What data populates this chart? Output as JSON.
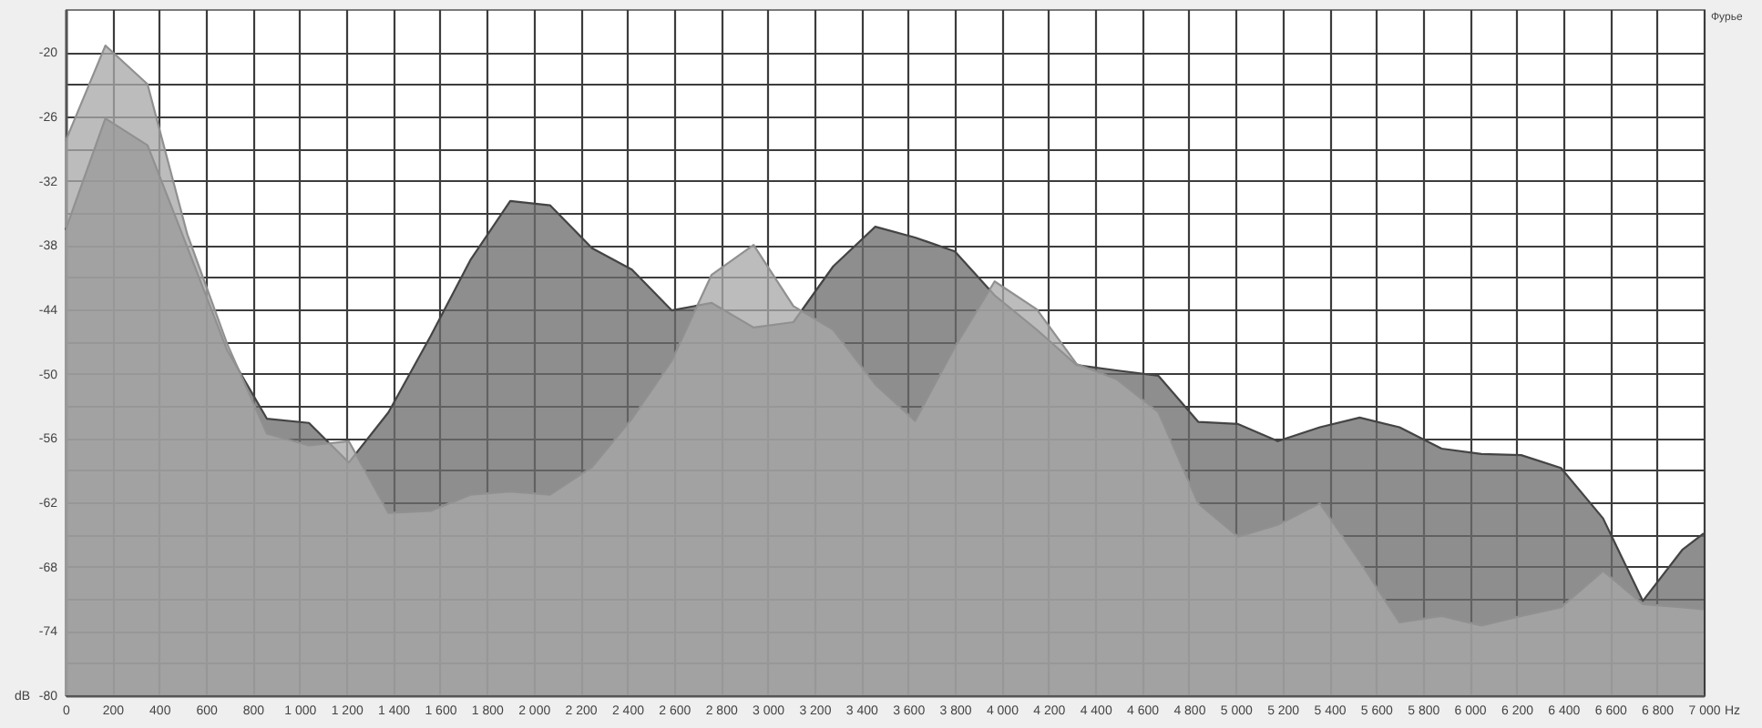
{
  "chart_data": {
    "type": "line",
    "xlabel": "Hz",
    "ylabel": "dB",
    "annotations": [
      "Фурье"
    ],
    "x": [
      0,
      170,
      350,
      520,
      690,
      860,
      1040,
      1210,
      1380,
      1560,
      1730,
      1900,
      2070,
      2250,
      2420,
      2590,
      2760,
      2940,
      3110,
      3280,
      3460,
      3630,
      3800,
      3970,
      4150,
      4320,
      4490,
      4670,
      4840,
      5010,
      5180,
      5360,
      5530,
      5700,
      5880,
      6050,
      6220,
      6390,
      6570,
      6740,
      6910,
      7000
    ],
    "series": [
      {
        "color": "#444444",
        "values": [
          -36.6,
          -26.2,
          -28.7,
          -38.2,
          -47.8,
          -54.2,
          -54.6,
          -58.3,
          -53.6,
          -46.5,
          -39.4,
          -33.9,
          -34.3,
          -38.3,
          -40.3,
          -44.1,
          -43.4,
          -45.7,
          -45.2,
          -40.0,
          -36.3,
          -37.3,
          -38.6,
          -42.7,
          -45.9,
          -49.2,
          -49.7,
          -50.2,
          -54.5,
          -54.7,
          -56.3,
          -55.0,
          -54.1,
          -55.0,
          -57.0,
          -57.5,
          -57.6,
          -58.8,
          -63.5,
          -71.2,
          -66.4,
          -64.9
        ],
        "lower": [
          -80,
          -80,
          -80,
          -80,
          -80,
          -80,
          -80,
          -80,
          -80,
          -80,
          -80,
          -80,
          -80,
          -80,
          -80,
          -80,
          -80,
          -80,
          -80,
          -80,
          -80,
          -80,
          -80,
          -80,
          -80,
          -80,
          -80,
          -80,
          -80,
          -80,
          -80,
          -80,
          -80,
          -80,
          -80,
          -80,
          -80,
          -80,
          -80,
          -80,
          -80,
          -80
        ],
        "upper": [
          -36.6,
          -26.2,
          -28.7,
          -38.2,
          -47.8,
          -54.2,
          -54.6,
          -58.3,
          -53.6,
          -46.5,
          -39.4,
          -33.9,
          -34.3,
          -38.3,
          -40.3,
          -44.1,
          -43.4,
          -45.7,
          -45.2,
          -40.0,
          -36.3,
          -37.3,
          -38.6,
          -42.7,
          -45.9,
          -49.2,
          -49.7,
          -50.2,
          -54.5,
          -54.7,
          -56.3,
          -55.0,
          -54.1,
          -55.0,
          -57.0,
          -57.5,
          -57.6,
          -58.8,
          -63.5,
          -71.2,
          -66.4,
          -64.9
        ]
      },
      {
        "color": "#909090",
        "values": [
          -28.3,
          -19.4,
          -23.0,
          -37.0,
          -47.2,
          -55.6,
          -56.7,
          -56.3,
          -63.0,
          -62.8,
          -61.3,
          -61.0,
          -61.3,
          -58.7,
          -54.2,
          -48.8,
          -40.8,
          -38.0,
          -43.7,
          -45.9,
          -51.0,
          -54.4,
          -47.5,
          -41.4,
          -44.0,
          -49.1,
          -50.5,
          -53.6,
          -62.1,
          -65.2,
          -64.1,
          -62.1,
          -67.5,
          -73.2,
          -72.6,
          -73.5,
          -72.6,
          -71.8,
          -68.4,
          -71.5,
          -71.8,
          -72.0
        ],
        "lower": [
          -80,
          -80,
          -80,
          -80,
          -80,
          -80,
          -80,
          -80,
          -80,
          -80,
          -80,
          -80,
          -80,
          -80,
          -80,
          -80,
          -80,
          -80,
          -80,
          -80,
          -80,
          -80,
          -80,
          -80,
          -80,
          -80,
          -80,
          -80,
          -80,
          -80,
          -80,
          -80,
          -80,
          -80,
          -80,
          -80,
          -80,
          -80,
          -80,
          -80,
          -80,
          -80
        ],
        "upper": [
          -28.3,
          -19.4,
          -23.0,
          -37.0,
          -47.2,
          -55.6,
          -56.7,
          -56.3,
          -63.0,
          -62.8,
          -61.3,
          -61.0,
          -61.3,
          -58.7,
          -54.2,
          -48.8,
          -40.8,
          -38.0,
          -43.7,
          -45.9,
          -51.0,
          -54.4,
          -47.5,
          -41.4,
          -44.0,
          -49.1,
          -50.5,
          -53.6,
          -62.1,
          -65.2,
          -64.1,
          -62.1,
          -67.5,
          -73.2,
          -72.6,
          -73.5,
          -72.6,
          -71.8,
          -68.4,
          -71.5,
          -71.8,
          -72.0
        ]
      }
    ],
    "xlim": [
      0,
      7000
    ],
    "xticks": [
      0,
      200,
      400,
      600,
      800,
      {
        "value": 1000,
        "label": "1 000"
      },
      {
        "value": 1200,
        "label": "1 200"
      },
      {
        "value": 1400,
        "label": "1 400"
      },
      {
        "value": 1600,
        "label": "1 600"
      },
      {
        "value": 1800,
        "label": "1 800"
      },
      {
        "value": 2000,
        "label": "2 000"
      },
      {
        "value": 2200,
        "label": "2 200"
      },
      {
        "value": 2400,
        "label": "2 400"
      },
      {
        "value": 2600,
        "label": "2 600"
      },
      {
        "value": 2800,
        "label": "2 800"
      },
      {
        "value": 3000,
        "label": "3 000"
      },
      {
        "value": 3200,
        "label": "3 200"
      },
      {
        "value": 3400,
        "label": "3 400"
      },
      {
        "value": 3600,
        "label": "3 600"
      },
      {
        "value": 3800,
        "label": "3 800"
      },
      {
        "value": 4000,
        "label": "4 000"
      },
      {
        "value": 4200,
        "label": "4 200"
      },
      {
        "value": 4400,
        "label": "4 400"
      },
      {
        "value": 4600,
        "label": "4 600"
      },
      {
        "value": 4800,
        "label": "4 800"
      },
      {
        "value": 5000,
        "label": "5 000"
      },
      {
        "value": 5200,
        "label": "5 200"
      },
      {
        "value": 5400,
        "label": "5 400"
      },
      {
        "value": 5600,
        "label": "5 600"
      },
      {
        "value": 5800,
        "label": "5 800"
      },
      {
        "value": 6000,
        "label": "6 000"
      },
      {
        "value": 6200,
        "label": "6 200"
      },
      {
        "value": 6400,
        "label": "6 400"
      },
      {
        "value": 6600,
        "label": "6 600"
      },
      {
        "value": 6800,
        "label": "6 800"
      },
      {
        "value": 7000,
        "label": "7 000"
      }
    ],
    "ylim": [
      -80,
      -16
    ],
    "yticks": [
      -80,
      {
        "value": -77,
        "label": null
      },
      -74,
      {
        "value": -71,
        "label": null
      },
      -68,
      {
        "value": -65,
        "label": null
      },
      -62,
      {
        "value": -59,
        "label": null
      },
      -56,
      {
        "value": -53,
        "label": null
      },
      -50,
      {
        "value": -47,
        "label": null
      },
      -44,
      {
        "value": -41,
        "label": null
      },
      -38,
      {
        "value": -35,
        "label": null
      },
      -32,
      {
        "value": -29,
        "label": null
      },
      -26,
      {
        "value": -23,
        "label": null
      },
      -20
    ],
    "grid": true
  }
}
